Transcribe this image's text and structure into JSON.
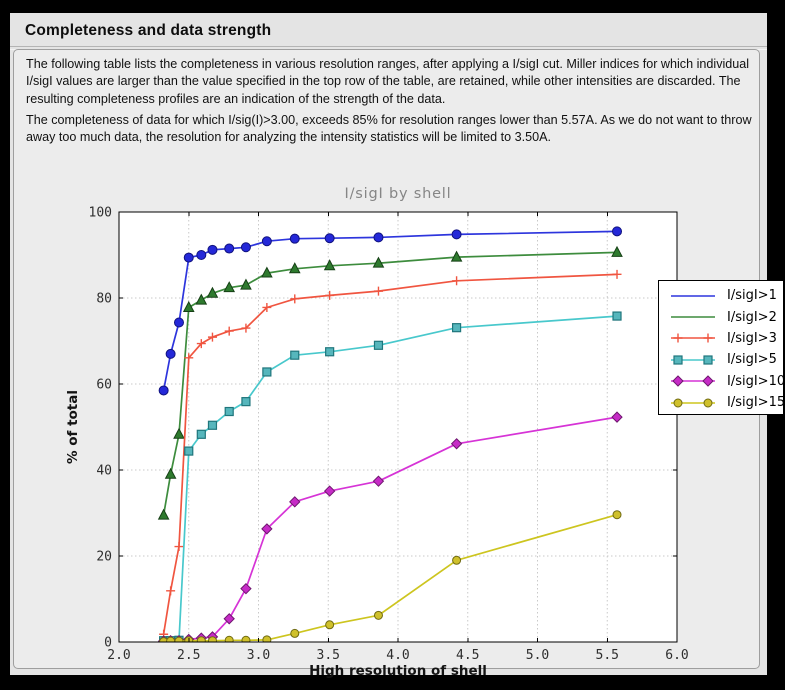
{
  "window": {
    "title": "Completeness and data strength"
  },
  "paragraphs": {
    "p1": "The following table lists the completeness in various resolution ranges, after applying a I/sigI cut. Miller indices for which individual I/sigI values are larger than the value specified in the top row of the table, are retained, while other intensities are discarded. The resulting completeness profiles are an indication of the strength of the data.",
    "p2": "The completeness of data for which I/sig(I)>3.00, exceeds  85% for resolution ranges lower than 5.57A. As we do not want to throw away too much data, the resolution for analyzing the intensity statistics will be limited to 3.50A."
  },
  "chart_data": {
    "type": "line",
    "title": "I/sigI by shell",
    "xlabel": "High resolution of shell",
    "ylabel": "% of total",
    "xlim": [
      2.0,
      6.0
    ],
    "ylim": [
      0,
      100
    ],
    "xticks": [
      "2.0",
      "2.5",
      "3.0",
      "3.5",
      "4.0",
      "4.5",
      "5.0",
      "5.5",
      "6.0"
    ],
    "yticks": [
      "0",
      "20",
      "40",
      "60",
      "80",
      "100"
    ],
    "grid": true,
    "legend_position": "upper right",
    "plot_bg": "#ffffff",
    "grid_color": "#c9c9c9",
    "x": [
      2.32,
      2.37,
      2.43,
      2.5,
      2.59,
      2.67,
      2.79,
      2.91,
      3.06,
      3.26,
      3.51,
      3.86,
      4.42,
      5.57
    ],
    "series": [
      {
        "name": "I/sigI>1",
        "line_color": "#2d35dd",
        "marker": "circle",
        "marker_fill": "#2428d8",
        "marker_edge": "#10127e",
        "marker_size": 4.5,
        "legend_marker": "none",
        "values": [
          58.5,
          67.0,
          74.3,
          89.4,
          90.0,
          91.2,
          91.5,
          91.8,
          93.2,
          93.8,
          93.9,
          94.1,
          94.8,
          95.5
        ]
      },
      {
        "name": "I/sigI>2",
        "line_color": "#3d8c3d",
        "marker": "triangle",
        "marker_fill": "#2e7a2e",
        "marker_edge": "#164016",
        "marker_size": 5,
        "legend_marker": "none",
        "values": [
          29.5,
          39.0,
          48.3,
          77.8,
          79.5,
          81.1,
          82.4,
          83.0,
          85.8,
          86.8,
          87.5,
          88.1,
          89.5,
          90.6
        ]
      },
      {
        "name": "I/sigI>3",
        "line_color": "#f05540",
        "marker": "plus",
        "marker_fill": "#f05540",
        "marker_edge": "#f05540",
        "marker_size": 4.5,
        "legend_marker": "plus",
        "values": [
          1.8,
          11.9,
          22.2,
          66.1,
          69.4,
          70.9,
          72.3,
          73.0,
          77.8,
          79.8,
          80.6,
          81.6,
          84.0,
          85.5
        ]
      },
      {
        "name": "I/sigI>5",
        "line_color": "#48c8cc",
        "marker": "square",
        "marker_fill": "#56b6bc",
        "marker_edge": "#20767c",
        "marker_size": 4,
        "legend_marker": "square",
        "values": [
          0.3,
          0.3,
          0.4,
          44.4,
          48.3,
          50.4,
          53.6,
          55.9,
          62.8,
          66.7,
          67.5,
          69.0,
          73.1,
          75.8
        ]
      },
      {
        "name": "I/sigI>10",
        "line_color": "#d633d6",
        "marker": "diamond",
        "marker_fill": "#c62bc6",
        "marker_edge": "#6e176e",
        "marker_size": 5,
        "legend_marker": "diamond",
        "values": [
          0.2,
          0.3,
          0.3,
          0.6,
          0.9,
          1.2,
          5.4,
          12.4,
          26.3,
          32.6,
          35.1,
          37.4,
          46.1,
          52.3
        ]
      },
      {
        "name": "I/sigI>15",
        "line_color": "#cdc51f",
        "marker": "circle",
        "marker_fill": "#cfc02b",
        "marker_edge": "#6f6a12",
        "marker_size": 4,
        "legend_marker": "circle",
        "values": [
          0.1,
          0.2,
          0.2,
          0.3,
          0.3,
          0.3,
          0.4,
          0.4,
          0.5,
          2.0,
          4.0,
          6.2,
          19.0,
          29.6
        ]
      }
    ]
  }
}
